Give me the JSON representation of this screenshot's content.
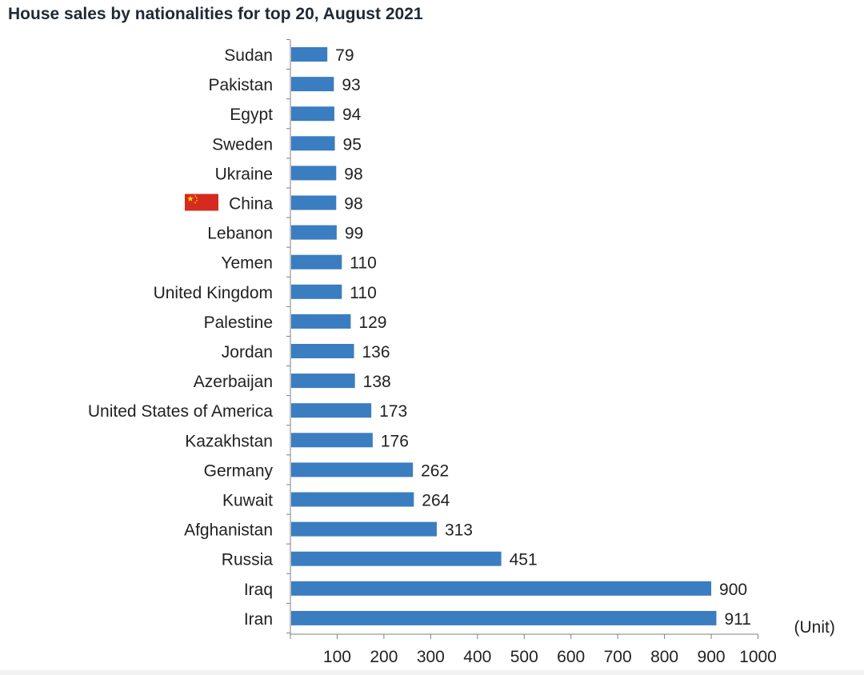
{
  "chart_data": {
    "type": "bar",
    "orientation": "horizontal",
    "title": "House sales by nationalities for top 20, August 2021",
    "unit_label": "(Unit)",
    "categories": [
      "Sudan",
      "Pakistan",
      "Egypt",
      "Sweden",
      "Ukraine",
      "China",
      "Lebanon",
      "Yemen",
      "United Kingdom",
      "Palestine",
      "Jordan",
      "Azerbaijan",
      "United States of America",
      "Kazakhstan",
      "Germany",
      "Kuwait",
      "Afghanistan",
      "Russia",
      "Iraq",
      "Iran"
    ],
    "values": [
      79,
      93,
      94,
      95,
      98,
      98,
      99,
      110,
      110,
      129,
      136,
      138,
      173,
      176,
      262,
      264,
      313,
      451,
      900,
      911
    ],
    "xlim": [
      0,
      1000
    ],
    "xticks": [
      100,
      200,
      300,
      400,
      500,
      600,
      700,
      800,
      900,
      1000
    ],
    "grid": false,
    "bar_color": "#3a7dc1",
    "highlight": {
      "category": "China",
      "marker": "china-flag-icon"
    }
  }
}
